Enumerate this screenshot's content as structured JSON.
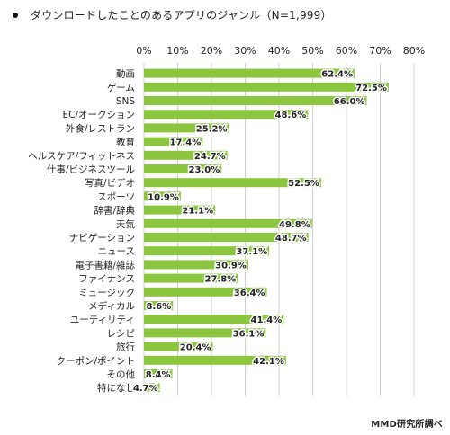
{
  "title": "ダウンロードしたことのあるアプリのジャンル（N=1,999）",
  "source": "MMD研究所調べ",
  "colors": {
    "bar": "#8cc63f",
    "grid": "#d0d0d0",
    "text": "#222222"
  },
  "chart_data": {
    "type": "bar",
    "orientation": "horizontal",
    "title": "ダウンロードしたことのあるアプリのジャンル（N=1,999）",
    "xlim": [
      0,
      80
    ],
    "x_ticks": [
      "0%",
      "10%",
      "20%",
      "30%",
      "40%",
      "50%",
      "60%",
      "70%",
      "80%"
    ],
    "grid": true,
    "categories": [
      "動画",
      "ゲーム",
      "SNS",
      "EC/オークション",
      "外食/レストラン",
      "教育",
      "ヘルスケア/フィットネス",
      "仕事/ビジネスツール",
      "写真/ビデオ",
      "スポーツ",
      "辞書/辞典",
      "天気",
      "ナビゲーション",
      "ニュース",
      "電子書籍/雑誌",
      "ファイナンス",
      "ミュージック",
      "メディカル",
      "ユーティリティ",
      "レシピ",
      "旅行",
      "クーポン/ポイント",
      "その他",
      "特になし"
    ],
    "values": [
      62.4,
      72.5,
      66.0,
      48.6,
      25.2,
      17.4,
      24.7,
      23.0,
      52.5,
      10.9,
      21.1,
      49.8,
      48.7,
      37.1,
      30.9,
      27.8,
      36.4,
      8.6,
      41.4,
      36.1,
      20.4,
      42.1,
      8.4,
      4.7
    ],
    "value_labels": [
      "62.4%",
      "72.5%",
      "66.0%",
      "48.6%",
      "25.2%",
      "17.4%",
      "24.7%",
      "23.0%",
      "52.5%",
      "10.9%",
      "21.1%",
      "49.8%",
      "48.7%",
      "37.1%",
      "30.9%",
      "27.8%",
      "36.4%",
      "8.6%",
      "41.4%",
      "36.1%",
      "20.4%",
      "42.1%",
      "8.4%",
      "4.7%"
    ]
  }
}
